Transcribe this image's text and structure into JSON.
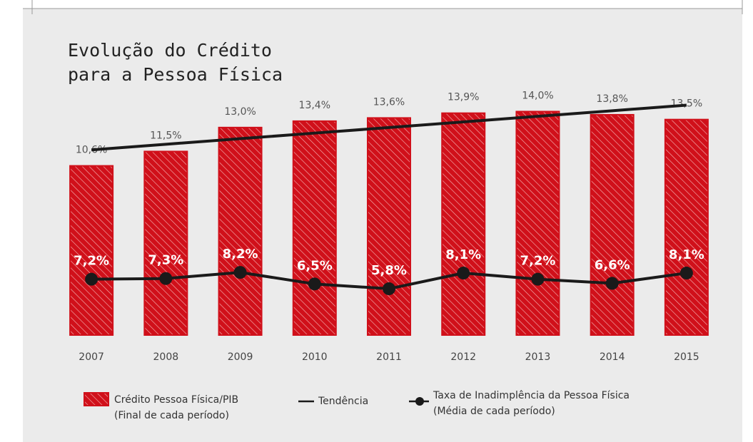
{
  "chart_data": {
    "type": "bar",
    "title": [
      "Evolução do Crédito",
      "para a Pessoa Física"
    ],
    "categories": [
      "2007",
      "2008",
      "2009",
      "2010",
      "2011",
      "2012",
      "2013",
      "2014",
      "2015"
    ],
    "ylim": [
      0,
      19.2
    ],
    "y2lim": [
      -1,
      44
    ],
    "series": [
      {
        "name": "Crédito Pessoa Física/PIB",
        "note": "(Final de cada período)",
        "type": "bar",
        "color": "#d0101a",
        "values": [
          10.6,
          11.5,
          13.0,
          13.4,
          13.6,
          13.9,
          14.0,
          13.8,
          13.5
        ],
        "value_labels": [
          "10,6%",
          "11,5%",
          "13,0%",
          "13,4%",
          "13,6%",
          "13,9%",
          "14,0%",
          "13,8%",
          "13,5%"
        ]
      },
      {
        "name": "Tendência",
        "type": "line",
        "color": "#1a1a1a",
        "values": [
          11.6,
          11.95,
          12.3,
          12.65,
          13.0,
          13.35,
          13.7,
          14.05,
          14.4
        ]
      },
      {
        "name": "Taxa de Inadimplência da Pessoa Física",
        "note": "(Média de cada período)",
        "type": "line",
        "axis": "y2",
        "markers": true,
        "color": "#1a1a1a",
        "values": [
          7.2,
          7.3,
          8.2,
          6.5,
          5.8,
          8.1,
          7.2,
          6.6,
          8.1
        ],
        "value_labels": [
          "7,2%",
          "7,3%",
          "8,2%",
          "6,5%",
          "5,8%",
          "8,1%",
          "7,2%",
          "6,6%",
          "8,1%"
        ]
      }
    ]
  }
}
